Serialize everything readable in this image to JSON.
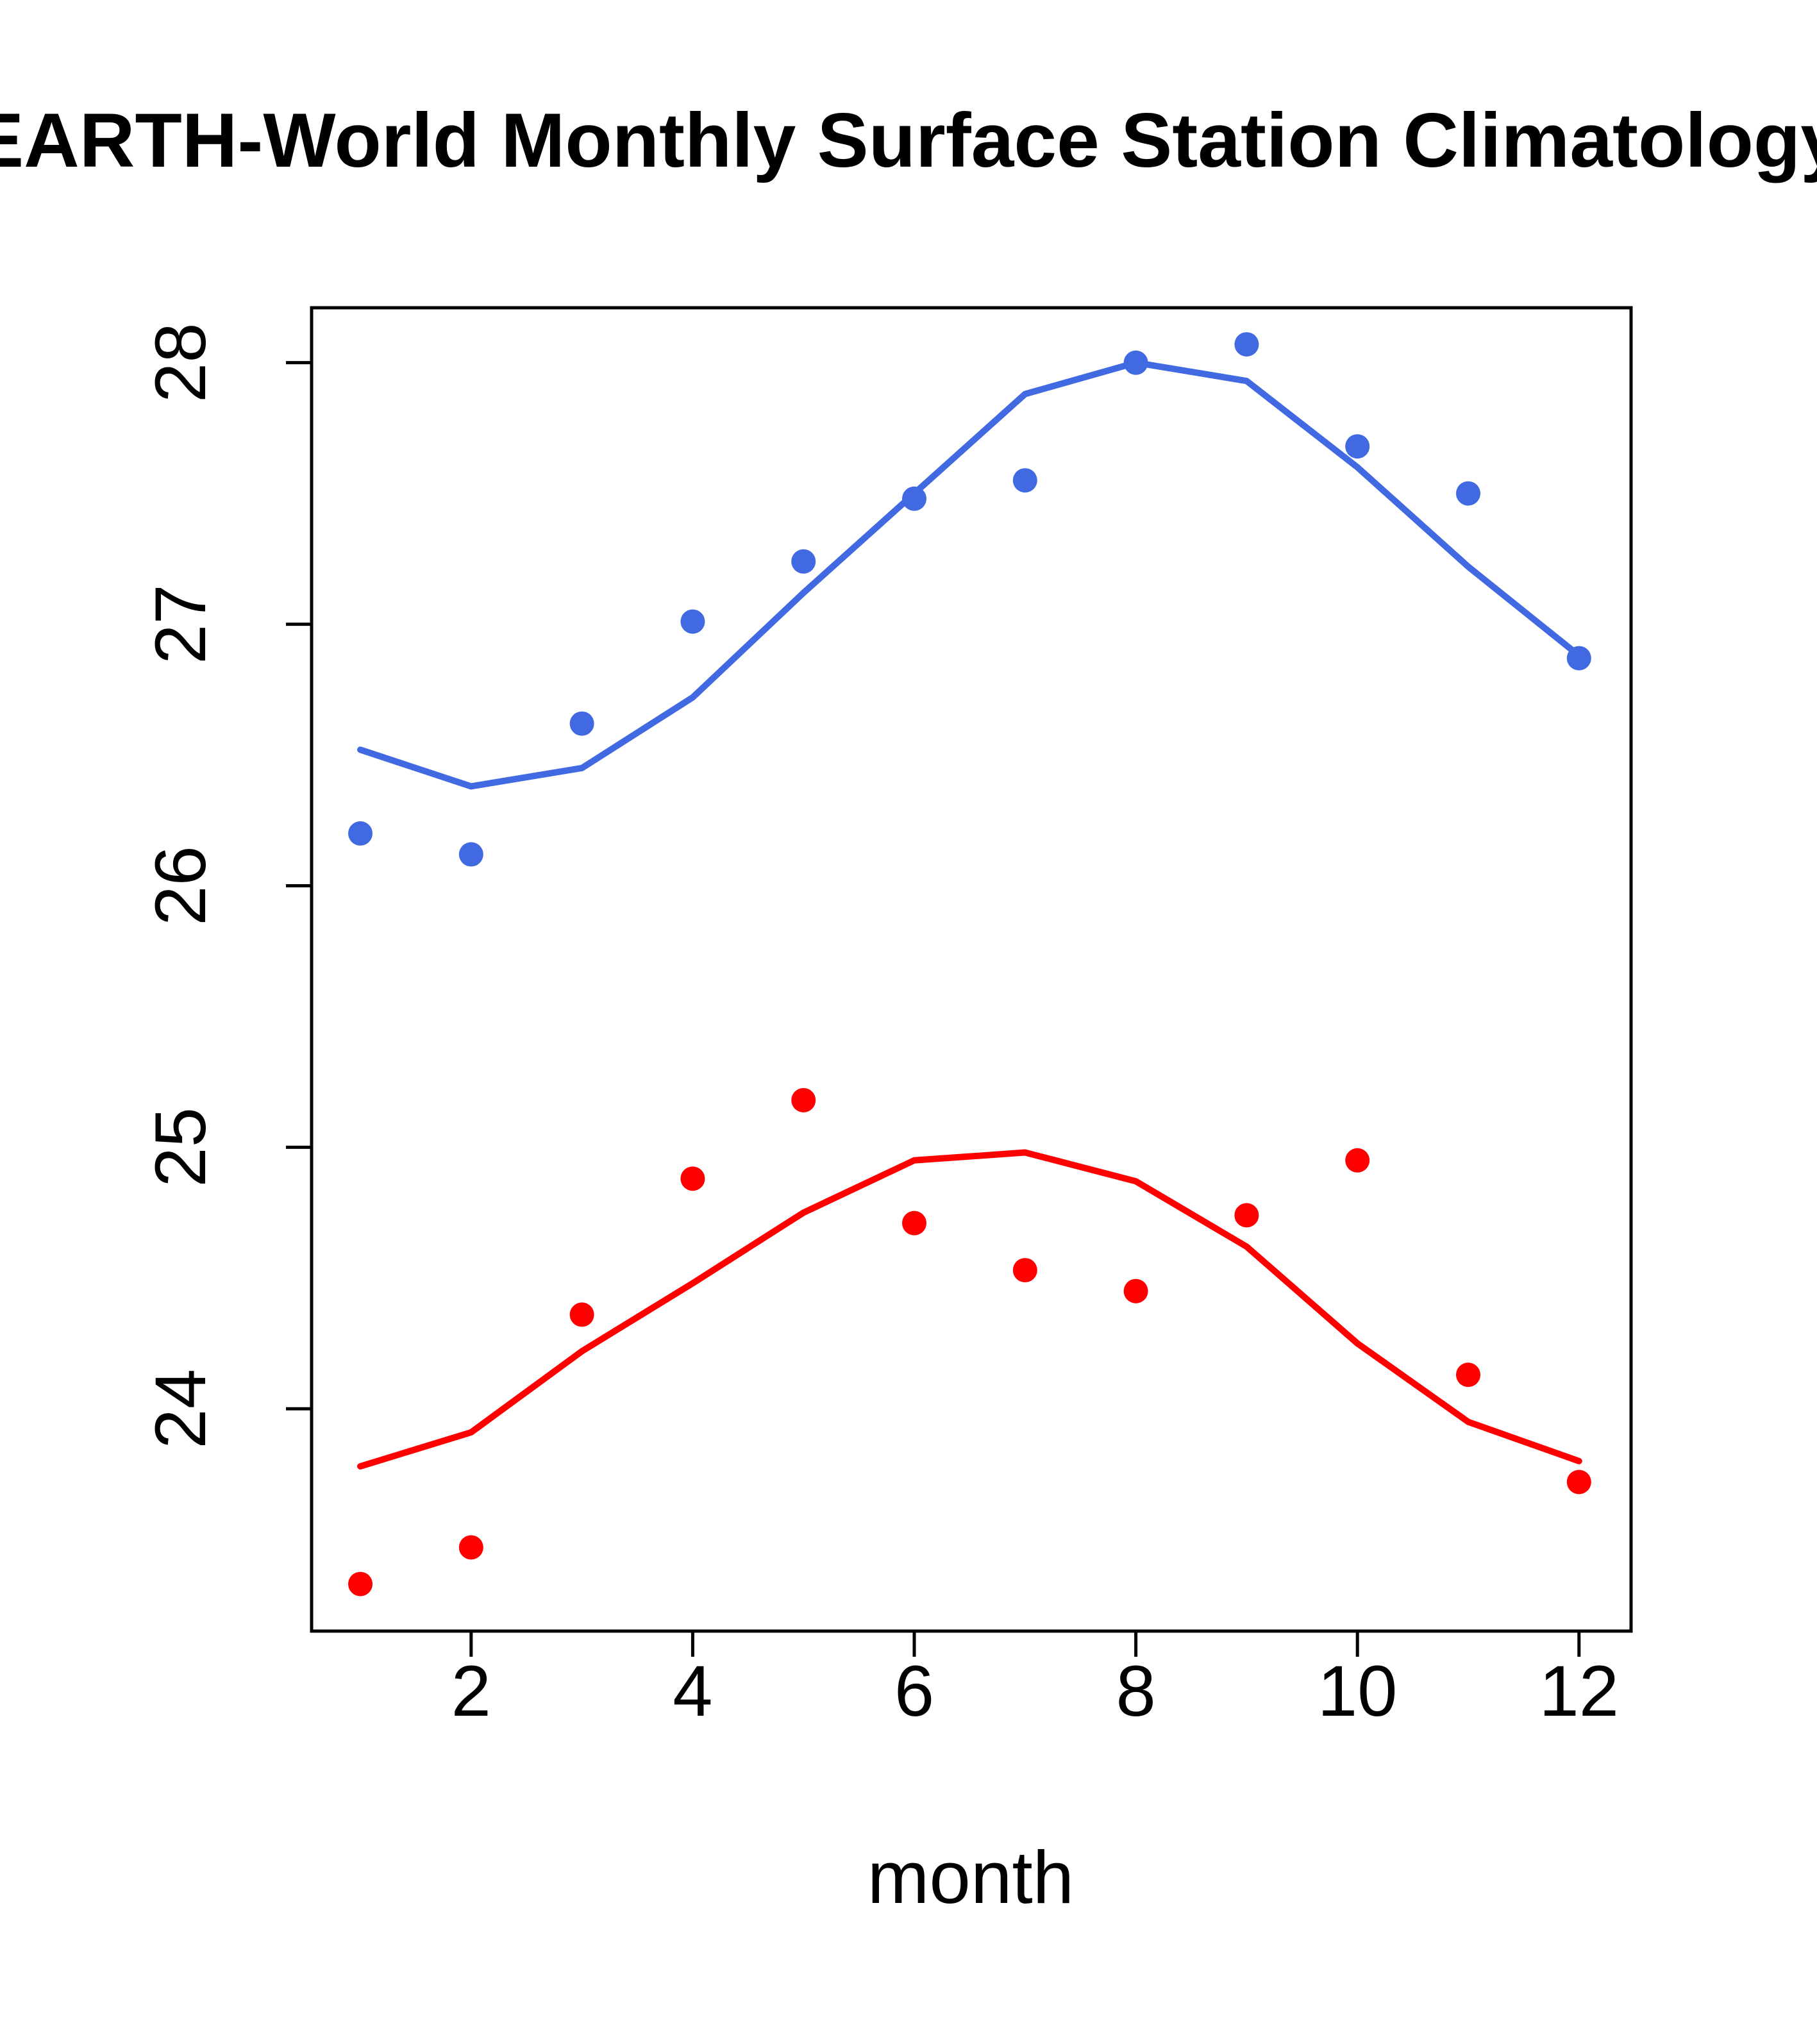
{
  "title": "EARTH-World Monthly Surface Station Climatology",
  "chart_data": {
    "type": "scatter",
    "title": "EARTH-World Monthly Surface Station Climatology",
    "xlabel": "month",
    "ylabel": "",
    "grid": false,
    "legend": "none",
    "xlim": [
      0.56,
      12.47
    ],
    "ylim": [
      23.15,
      28.21
    ],
    "x_ticks": [
      2,
      4,
      6,
      8,
      10,
      12
    ],
    "y_ticks": [
      24,
      25,
      26,
      27,
      28
    ],
    "x": [
      1,
      2,
      3,
      4,
      5,
      6,
      7,
      8,
      9,
      10,
      11,
      12
    ],
    "colors": {
      "upper_series": "#4169E1",
      "lower_series": "#FF0000",
      "axis": "#000000"
    },
    "series": [
      {
        "name": "upper-temperature-points",
        "style": "points",
        "color": "#4169E1",
        "values": [
          26.2,
          26.12,
          26.62,
          27.01,
          27.24,
          27.48,
          27.55,
          28.0,
          28.07,
          27.68,
          27.5,
          26.87
        ]
      },
      {
        "name": "upper-temperature-smooth-line",
        "style": "line",
        "color": "#4169E1",
        "values": [
          26.52,
          26.38,
          26.45,
          26.72,
          27.12,
          27.5,
          27.88,
          28.0,
          27.93,
          27.6,
          27.22,
          26.88
        ]
      },
      {
        "name": "lower-temperature-points",
        "style": "points",
        "color": "#FF0000",
        "values": [
          23.33,
          23.47,
          24.36,
          24.88,
          25.18,
          24.71,
          24.53,
          24.45,
          24.74,
          24.95,
          24.13,
          23.72
        ]
      },
      {
        "name": "lower-temperature-smooth-line",
        "style": "line",
        "color": "#FF0000",
        "values": [
          23.78,
          23.91,
          24.22,
          24.48,
          24.75,
          24.95,
          24.98,
          24.87,
          24.62,
          24.25,
          23.95,
          23.8
        ]
      }
    ]
  }
}
